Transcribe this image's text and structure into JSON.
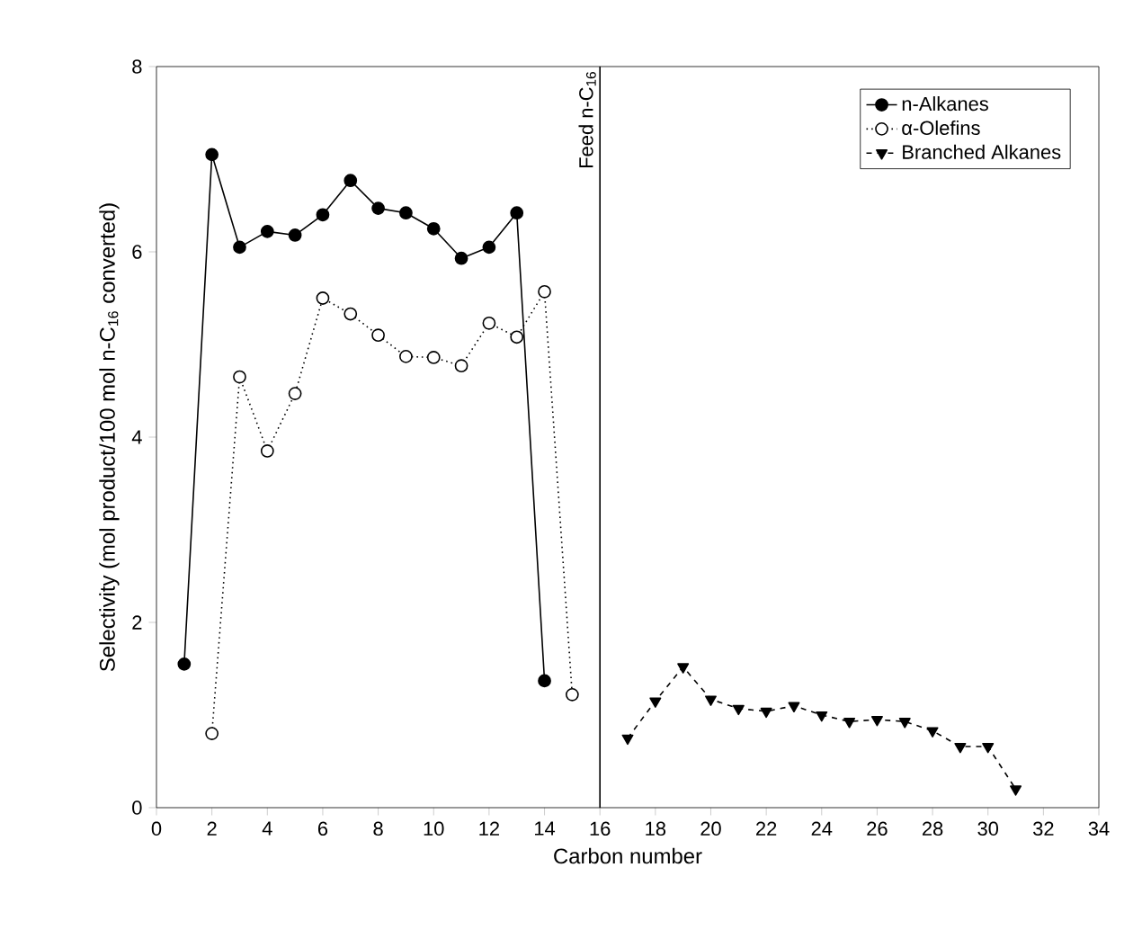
{
  "chart_data": {
    "type": "line",
    "xlabel": "Carbon number",
    "ylabel": "Selectivity (mol product/100 mol n-C$_{16}$ converted)",
    "xlim": [
      0,
      34
    ],
    "xticks": [
      0,
      2,
      4,
      6,
      8,
      10,
      12,
      14,
      16,
      18,
      20,
      22,
      24,
      26,
      28,
      30,
      32,
      34
    ],
    "ylim": [
      0,
      8
    ],
    "yticks": [
      0,
      2,
      4,
      6,
      8
    ],
    "grid": false,
    "legend": "top right",
    "ref_lines": [
      {
        "axis": "x",
        "value": 16,
        "label": "Feed n-C$_{16}$",
        "color": "#000000",
        "line_style": "solid"
      }
    ],
    "series": [
      {
        "name": "n-Alkanes",
        "color": "#000000",
        "marker": "circle",
        "line_style": "solid",
        "x": [
          1,
          2,
          3,
          4,
          5,
          6,
          7,
          8,
          9,
          10,
          11,
          12,
          13,
          14
        ],
        "values": [
          1.55,
          7.05,
          6.05,
          6.22,
          6.18,
          6.4,
          6.77,
          6.47,
          6.42,
          6.25,
          5.93,
          6.05,
          6.42,
          1.37
        ]
      },
      {
        "name": "α-Olefins",
        "color": "#000000",
        "marker": "circle",
        "line_style": "dotted",
        "x": [
          2,
          3,
          4,
          5,
          6,
          7,
          8,
          9,
          10,
          11,
          12,
          13,
          14,
          15
        ],
        "values": [
          0.8,
          4.65,
          3.85,
          4.47,
          5.5,
          5.33,
          5.1,
          4.87,
          4.86,
          4.77,
          5.23,
          5.08,
          5.57,
          1.22
        ]
      },
      {
        "name": "Branched Alkanes",
        "color": "#000000",
        "marker": "triangle",
        "line_style": "dashed",
        "x": [
          17,
          18,
          19,
          20,
          21,
          22,
          23,
          24,
          25,
          26,
          27,
          28,
          29,
          30,
          31
        ],
        "values": [
          0.75,
          1.15,
          1.52,
          1.17,
          1.07,
          1.04,
          1.1,
          1.0,
          0.93,
          0.95,
          0.93,
          0.83,
          0.66,
          0.66,
          0.2
        ]
      }
    ]
  }
}
